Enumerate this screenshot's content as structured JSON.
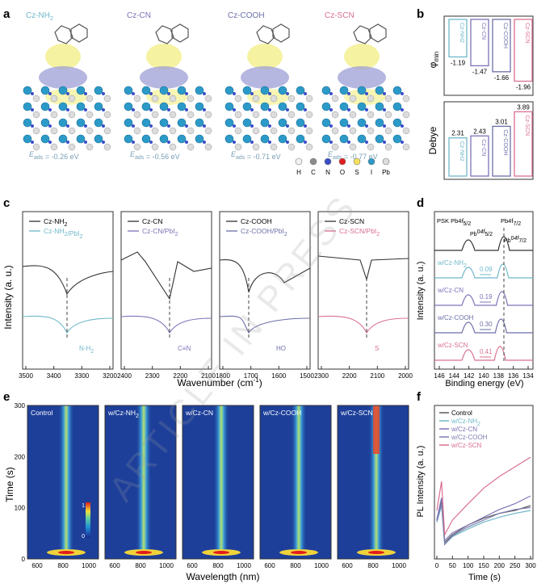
{
  "panels": {
    "a": {
      "letter": "a",
      "molecules": [
        {
          "name": "Cz-NH2",
          "label": "Cz-NH",
          "sub": "2",
          "color": "#6fb8c9",
          "eads_label": "E",
          "eads_sub": "ads",
          "eads_value": " = -0.26 eV"
        },
        {
          "name": "Cz-CN",
          "label": "Cz-CN",
          "sub": "",
          "color": "#7b74b8",
          "eads_label": "E",
          "eads_sub": "ads",
          "eads_value": " = -0.56 eV"
        },
        {
          "name": "Cz-COOH",
          "label": "Cz-COOH",
          "sub": "",
          "color": "#6c6fa8",
          "eads_label": "E",
          "eads_sub": "ads",
          "eads_value": " = -0.71 eV"
        },
        {
          "name": "Cz-SCN",
          "label": "Cz-SCN",
          "sub": "",
          "color": "#d9708f",
          "eads_label": "E",
          "eads_sub": "ads",
          "eads_value": " = -0.77 eV"
        }
      ],
      "atom_legend": [
        {
          "symbol": "H",
          "color": "#f2f2f2"
        },
        {
          "symbol": "C",
          "color": "#8a8a8a"
        },
        {
          "symbol": "N",
          "color": "#3a4ec9"
        },
        {
          "symbol": "O",
          "color": "#e02020"
        },
        {
          "symbol": "S",
          "color": "#f4e25a"
        },
        {
          "symbol": "I",
          "color": "#2b9ac9"
        },
        {
          "symbol": "Pb",
          "color": "#dcdcdc"
        }
      ]
    },
    "b": {
      "letter": "b",
      "top_ylabel": "φ",
      "top_ylabel_sub": "min",
      "bottom_ylabel": "Debye",
      "categories": [
        "Cz-NH2",
        "Cz-CN",
        "Cz-COOH",
        "Cz-SCN"
      ],
      "colors": [
        "#6fb8c9",
        "#7b74b8",
        "#6c6fa8",
        "#d9708f"
      ],
      "phi_min": [
        -1.19,
        -1.47,
        -1.66,
        -1.96
      ],
      "phi_labels": [
        "-1.19",
        "-1.47",
        "-1.66",
        "-1.96"
      ],
      "debye": [
        2.31,
        2.43,
        3.01,
        3.89
      ],
      "debye_labels": [
        "2.31",
        "2.43",
        "3.01",
        "3.89"
      ]
    },
    "c": {
      "letter": "c",
      "ylabel": "Intensity (a. u.)",
      "xlabel": "Wavenumber (cm",
      "xlabel_sup": "-1",
      "xlabel_end": ")",
      "subpanels": [
        {
          "ticks": [
            "3500",
            "3400",
            "3300",
            "3200"
          ],
          "legend": [
            "Cz-NH2",
            "Cz-NH2/PbI2"
          ],
          "legend_disp": [
            [
              "Cz-NH",
              "2",
              ""
            ],
            [
              "Cz-NH",
              "2",
              "/PbI",
              "2"
            ]
          ],
          "color": "#6fb8c9",
          "group": "N-H",
          "group_sub": "2"
        },
        {
          "ticks": [
            "2400",
            "2300",
            "2200",
            "2100"
          ],
          "legend": [
            "Cz-CN",
            "Cz-CN/PbI2"
          ],
          "legend_disp": [
            [
              "Cz-CN",
              "",
              ""
            ],
            [
              "Cz-CN/PbI",
              "2",
              ""
            ]
          ],
          "color": "#7b74b8",
          "group": "C≡N",
          "group_sub": ""
        },
        {
          "ticks": [
            "1800",
            "1700",
            "1600",
            "1500"
          ],
          "legend": [
            "Cz-COOH",
            "Cz-COOH/PbI2"
          ],
          "legend_disp": [
            [
              "Cz-COOH",
              "",
              ""
            ],
            [
              "Cz-COOH/PbI",
              "2",
              ""
            ]
          ],
          "color": "#6c6fa8",
          "group": "HO",
          "group_sub": ""
        },
        {
          "ticks": [
            "2300",
            "2200",
            "2100",
            "2000"
          ],
          "legend": [
            "Cz-SCN",
            "Cz-SCN/PbI2"
          ],
          "legend_disp": [
            [
              "Cz-SCN",
              "",
              ""
            ],
            [
              "Cz-SCN/PbI",
              "2",
              ""
            ]
          ],
          "color": "#d9708f",
          "group": "S",
          "group_sub": ""
        }
      ]
    },
    "d": {
      "letter": "d",
      "ylabel": "Intensity (a. u.)",
      "xlabel": "Binding energy (eV)",
      "ticks": [
        "146",
        "144",
        "142",
        "140",
        "138",
        "136",
        "134"
      ],
      "psk_label": "PSK Pb4",
      "peak_labels": [
        "Pb4f",
        "Pb",
        "Pb"
      ],
      "traces": [
        {
          "name": "PSK",
          "color": "#333333",
          "shift": ""
        },
        {
          "name": "w/Cz-NH2",
          "label": "w/Cz-NH",
          "sub": "2",
          "color": "#6fb8c9",
          "shift": "0.09"
        },
        {
          "name": "w/Cz-CN",
          "label": "w/Cz-CN",
          "sub": "",
          "color": "#7b74b8",
          "shift": "0.19"
        },
        {
          "name": "w/Cz-COOH",
          "label": "w/Cz-COOH",
          "sub": "",
          "color": "#6c6fa8",
          "shift": "0.30"
        },
        {
          "name": "w/Cz-SCN",
          "label": "w/Cz-SCN",
          "sub": "",
          "color": "#d9708f",
          "shift": "0.41"
        }
      ]
    },
    "e": {
      "letter": "e",
      "ylabel": "Time (s)",
      "xlabel": "Wavelength (nm)",
      "yticks": [
        "0",
        "100",
        "200",
        "300"
      ],
      "xticks": [
        "600",
        "800",
        "1000"
      ],
      "maps": [
        {
          "title": "Control",
          "sub": ""
        },
        {
          "title": "w/Cz-NH",
          "sub": "2"
        },
        {
          "title": "w/Cz-CN",
          "sub": ""
        },
        {
          "title": "w/Cz-COOH",
          "sub": ""
        },
        {
          "title": "w/Cz-SCN",
          "sub": ""
        }
      ],
      "colorbar_max": "1",
      "colorbar_min": "0"
    },
    "f": {
      "letter": "f",
      "ylabel": "PL Intensity (a. u.)",
      "xlabel": "Time (s)",
      "xticks": [
        "0",
        "50",
        "100",
        "150",
        "200",
        "250",
        "300"
      ],
      "legend": [
        {
          "name": "Control",
          "color": "#5a5a5a"
        },
        {
          "name": "w/Cz-NH2",
          "label": "w/Cz-NH",
          "sub": "2",
          "color": "#6fb8c9"
        },
        {
          "name": "w/Cz-CN",
          "label": "w/Cz-CN",
          "sub": "",
          "color": "#7b74b8"
        },
        {
          "name": "w/Cz-COOH",
          "label": "w/Cz-COOH",
          "sub": "",
          "color": "#7d7fb0"
        },
        {
          "name": "w/Cz-SCN",
          "label": "w/Cz-SCN",
          "sub": "",
          "color": "#d9708f"
        }
      ]
    }
  },
  "watermark": "ARTICLE IN PRESS",
  "chart_data": [
    {
      "type": "bar",
      "title": "",
      "ylabel": "φmin",
      "categories": [
        "Cz-NH2",
        "Cz-CN",
        "Cz-COOH",
        "Cz-SCN"
      ],
      "values": [
        -1.19,
        -1.47,
        -1.66,
        -1.96
      ],
      "ylim": [
        -2.1,
        0
      ]
    },
    {
      "type": "bar",
      "title": "",
      "ylabel": "Debye",
      "categories": [
        "Cz-NH2",
        "Cz-CN",
        "Cz-COOH",
        "Cz-SCN"
      ],
      "values": [
        2.31,
        2.43,
        3.01,
        3.89
      ],
      "ylim": [
        0,
        4.3
      ]
    },
    {
      "type": "line",
      "xlabel": "Binding energy (eV)",
      "series_shift_eV": [
        {
          "name": "w/Cz-NH2",
          "value": 0.09
        },
        {
          "name": "w/Cz-CN",
          "value": 0.19
        },
        {
          "name": "w/Cz-COOH",
          "value": 0.3
        },
        {
          "name": "w/Cz-SCN",
          "value": 0.41
        }
      ]
    },
    {
      "type": "line",
      "xlabel": "Time (s)",
      "ylabel": "PL Intensity (a. u.)",
      "x": [
        0,
        15,
        25,
        50,
        100,
        150,
        200,
        250,
        300
      ],
      "series": [
        {
          "name": "Control",
          "values": [
            0.35,
            0.55,
            0.12,
            0.2,
            0.3,
            0.37,
            0.42,
            0.45,
            0.5
          ]
        },
        {
          "name": "w/Cz-NH2",
          "values": [
            0.33,
            0.5,
            0.1,
            0.18,
            0.26,
            0.33,
            0.38,
            0.42,
            0.45
          ]
        },
        {
          "name": "w/Cz-CN",
          "values": [
            0.36,
            0.58,
            0.14,
            0.22,
            0.3,
            0.38,
            0.46,
            0.52,
            0.6
          ]
        },
        {
          "name": "w/Cz-COOH",
          "values": [
            0.34,
            0.52,
            0.1,
            0.19,
            0.28,
            0.35,
            0.42,
            0.46,
            0.48
          ]
        },
        {
          "name": "w/Cz-SCN",
          "values": [
            0.45,
            0.75,
            0.2,
            0.35,
            0.52,
            0.68,
            0.8,
            0.9,
            1.0
          ]
        }
      ]
    }
  ]
}
